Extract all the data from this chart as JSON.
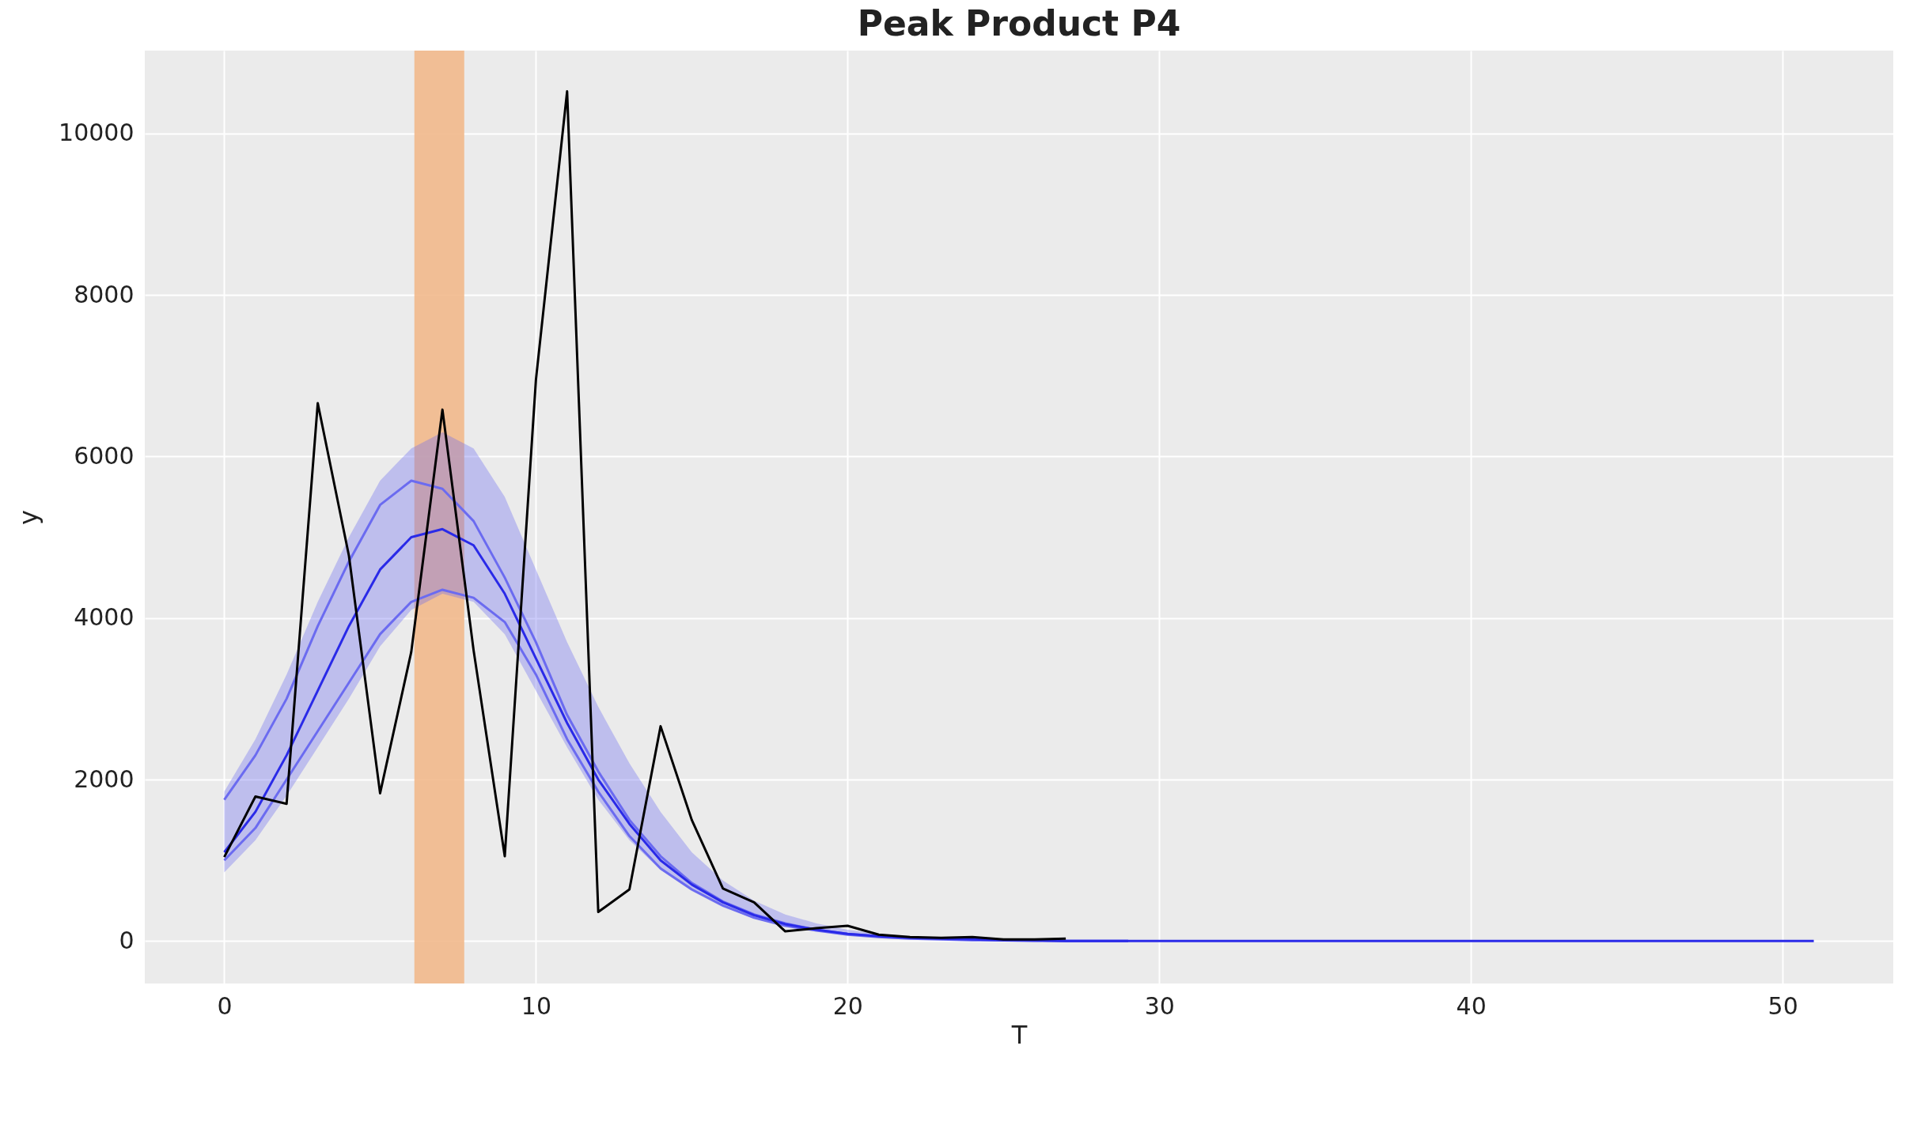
{
  "chart_data": {
    "type": "line",
    "title": "Peak Product P4",
    "xlabel": "T",
    "ylabel": "y",
    "x": [
      0,
      1,
      2,
      3,
      4,
      5,
      6,
      7,
      8,
      9,
      10,
      11,
      12,
      13,
      14,
      15,
      16,
      17,
      18,
      19,
      20,
      21,
      22,
      23,
      24,
      25,
      26,
      27,
      28,
      29,
      30,
      31,
      32,
      33,
      34,
      35,
      36,
      37,
      38,
      39,
      40,
      41,
      42,
      43,
      44,
      45,
      46,
      47,
      48,
      49,
      50,
      51
    ],
    "series": [
      {
        "color": "#6b6bf0",
        "values": [
          1750,
          2300,
          3000,
          3900,
          4700,
          5400,
          5700,
          5600,
          5200,
          4500,
          3700,
          2800,
          2100,
          1500,
          1050,
          720,
          490,
          330,
          220,
          140,
          90,
          60,
          40,
          30,
          20,
          10,
          10,
          0,
          0,
          0,
          null,
          null,
          null,
          null,
          null,
          null,
          null,
          null,
          null,
          null,
          null,
          null,
          null,
          null,
          null,
          null,
          null,
          null,
          null,
          null,
          null,
          null
        ],
        "lower": [
          850,
          1250,
          1800,
          2400,
          3000,
          3650,
          4100,
          4300,
          4200,
          3800,
          3100,
          2400,
          1750,
          1250,
          880,
          620,
          420,
          280,
          180,
          120,
          80,
          50,
          30,
          20,
          10,
          10,
          0,
          0,
          0,
          0,
          0,
          0,
          0,
          0,
          0,
          0,
          0,
          0,
          0,
          0,
          0,
          0,
          0,
          0,
          0,
          0,
          0,
          0,
          0,
          0,
          0,
          0
        ],
        "upper": [
          1850,
          2500,
          3300,
          4200,
          5000,
          5700,
          6100,
          6300,
          6100,
          5500,
          4600,
          3700,
          2900,
          2200,
          1600,
          1100,
          750,
          500,
          330,
          220,
          140,
          90,
          60,
          40,
          30,
          20,
          10,
          10,
          0,
          0,
          0,
          0,
          0,
          0,
          0,
          0,
          0,
          0,
          0,
          0,
          0,
          0,
          0,
          0,
          0,
          0,
          0,
          0,
          0,
          0,
          0,
          0
        ]
      },
      {
        "color": "#6b6bf0",
        "values": [
          1000,
          1400,
          2000,
          2600,
          3200,
          3800,
          4200,
          4350,
          4250,
          3950,
          3300,
          2500,
          1850,
          1300,
          900,
          640,
          440,
          290,
          190,
          130,
          80,
          50,
          30,
          20,
          10,
          10,
          0,
          0,
          0,
          0,
          null,
          null,
          null,
          null,
          null,
          null,
          null,
          null,
          null,
          null,
          null,
          null,
          null,
          null,
          null,
          null,
          null,
          null,
          null,
          null,
          null,
          null
        ]
      },
      {
        "color": "#2a2ae8",
        "values": [
          1100,
          1600,
          2300,
          3100,
          3900,
          4600,
          5000,
          5100,
          4900,
          4300,
          3500,
          2700,
          2000,
          1450,
          1000,
          700,
          480,
          320,
          210,
          140,
          90,
          60,
          40,
          30,
          20,
          10,
          10,
          0,
          0,
          0,
          0,
          0,
          0,
          0,
          0,
          0,
          0,
          0,
          0,
          0,
          0,
          0,
          0,
          0,
          0,
          0,
          0,
          0,
          0,
          0,
          0,
          0
        ]
      },
      {
        "color": "#000000",
        "values": [
          1040,
          1790,
          1700,
          6660,
          4770,
          1830,
          3580,
          6580,
          3600,
          1050,
          6950,
          10520,
          360,
          640,
          2660,
          1500,
          650,
          480,
          120,
          160,
          190,
          80,
          50,
          40,
          50,
          20,
          20,
          30,
          null,
          null,
          null,
          null,
          null,
          null,
          null,
          null,
          null,
          null,
          null,
          null,
          null,
          null,
          null,
          null,
          null,
          null,
          null,
          null,
          null,
          null,
          null,
          null
        ]
      }
    ],
    "bands": [
      {
        "axis": "x",
        "from": 6.1,
        "to": 7.7,
        "color": "#f2b98c"
      }
    ],
    "xlim": [
      -2.55,
      53.55
    ],
    "xticks": [
      0,
      10,
      20,
      30,
      40,
      50
    ],
    "ylim": [
      -525,
      11025
    ],
    "yticks": [
      0,
      2000,
      4000,
      6000,
      8000,
      10000
    ],
    "grid": true,
    "marker": "none",
    "line_style": "solid"
  }
}
